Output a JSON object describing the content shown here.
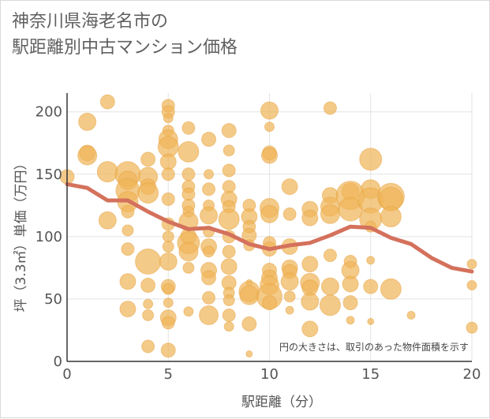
{
  "chart_data": {
    "type": "scatter",
    "title": "神奈川県海老名市の駅距離別中古マンション価格",
    "title_lines": [
      "神奈川県海老名市の",
      "駅距離別中古マンション価格"
    ],
    "xlabel": "駅距離（分）",
    "ylabel": "坪（3.3㎡）単価（万円）",
    "annotation": "円の大きさは、取引のあった物件面積を示す",
    "xlim": [
      0,
      20
    ],
    "ylim": [
      0,
      215
    ],
    "xticks": [
      0,
      5,
      10,
      15,
      20
    ],
    "yticks": [
      0,
      50,
      100,
      150,
      200
    ],
    "grid": true,
    "legend": "none",
    "colors": {
      "bubble": "#f0b55a",
      "bubble_stroke": "#e6a23e",
      "line": "#d4715c",
      "grid": "#e3e3e3",
      "axis": "#333333"
    },
    "scatter": [
      {
        "x": 0,
        "y": 148,
        "s": 9
      },
      {
        "x": 1,
        "y": 192,
        "s": 11
      },
      {
        "x": 1,
        "y": 167,
        "s": 10
      },
      {
        "x": 1,
        "y": 165,
        "s": 12
      },
      {
        "x": 2,
        "y": 208,
        "s": 9
      },
      {
        "x": 2,
        "y": 152,
        "s": 13
      },
      {
        "x": 2,
        "y": 113,
        "s": 11
      },
      {
        "x": 3,
        "y": 150,
        "s": 16
      },
      {
        "x": 3,
        "y": 145,
        "s": 12
      },
      {
        "x": 3,
        "y": 137,
        "s": 15
      },
      {
        "x": 3,
        "y": 128,
        "s": 13
      },
      {
        "x": 3,
        "y": 120,
        "s": 8
      },
      {
        "x": 3,
        "y": 105,
        "s": 7
      },
      {
        "x": 3,
        "y": 90,
        "s": 8
      },
      {
        "x": 3,
        "y": 64,
        "s": 10
      },
      {
        "x": 3,
        "y": 42,
        "s": 10
      },
      {
        "x": 4,
        "y": 162,
        "s": 9
      },
      {
        "x": 4,
        "y": 148,
        "s": 12
      },
      {
        "x": 4,
        "y": 140,
        "s": 10
      },
      {
        "x": 4,
        "y": 135,
        "s": 13
      },
      {
        "x": 4,
        "y": 80,
        "s": 16
      },
      {
        "x": 4,
        "y": 61,
        "s": 9
      },
      {
        "x": 4,
        "y": 46,
        "s": 6
      },
      {
        "x": 4,
        "y": 37,
        "s": 7
      },
      {
        "x": 4,
        "y": 12,
        "s": 8
      },
      {
        "x": 5,
        "y": 205,
        "s": 8
      },
      {
        "x": 5,
        "y": 200,
        "s": 8
      },
      {
        "x": 5,
        "y": 195,
        "s": 6
      },
      {
        "x": 5,
        "y": 185,
        "s": 7
      },
      {
        "x": 5,
        "y": 178,
        "s": 12
      },
      {
        "x": 5,
        "y": 172,
        "s": 13
      },
      {
        "x": 5,
        "y": 160,
        "s": 10
      },
      {
        "x": 5,
        "y": 150,
        "s": 8
      },
      {
        "x": 5,
        "y": 130,
        "s": 8
      },
      {
        "x": 5,
        "y": 110,
        "s": 8
      },
      {
        "x": 5,
        "y": 100,
        "s": 7
      },
      {
        "x": 5,
        "y": 92,
        "s": 7
      },
      {
        "x": 5,
        "y": 80,
        "s": 11
      },
      {
        "x": 5,
        "y": 60,
        "s": 9
      },
      {
        "x": 5,
        "y": 58,
        "s": 7
      },
      {
        "x": 5,
        "y": 47,
        "s": 6
      },
      {
        "x": 5,
        "y": 35,
        "s": 10
      },
      {
        "x": 5,
        "y": 31,
        "s": 8
      },
      {
        "x": 5,
        "y": 9,
        "s": 9
      },
      {
        "x": 6,
        "y": 187,
        "s": 8
      },
      {
        "x": 6,
        "y": 168,
        "s": 13
      },
      {
        "x": 6,
        "y": 150,
        "s": 8
      },
      {
        "x": 6,
        "y": 140,
        "s": 8
      },
      {
        "x": 6,
        "y": 134,
        "s": 8
      },
      {
        "x": 6,
        "y": 125,
        "s": 8
      },
      {
        "x": 6,
        "y": 120,
        "s": 7
      },
      {
        "x": 6,
        "y": 112,
        "s": 12
      },
      {
        "x": 6,
        "y": 100,
        "s": 10
      },
      {
        "x": 6,
        "y": 95,
        "s": 14
      },
      {
        "x": 6,
        "y": 88,
        "s": 12
      },
      {
        "x": 6,
        "y": 75,
        "s": 7
      },
      {
        "x": 6,
        "y": 40,
        "s": 6
      },
      {
        "x": 7,
        "y": 178,
        "s": 9
      },
      {
        "x": 7,
        "y": 150,
        "s": 6
      },
      {
        "x": 7,
        "y": 138,
        "s": 8
      },
      {
        "x": 7,
        "y": 125,
        "s": 7
      },
      {
        "x": 7,
        "y": 117,
        "s": 11
      },
      {
        "x": 7,
        "y": 104,
        "s": 7
      },
      {
        "x": 7,
        "y": 92,
        "s": 10
      },
      {
        "x": 7,
        "y": 88,
        "s": 7
      },
      {
        "x": 7,
        "y": 73,
        "s": 10
      },
      {
        "x": 7,
        "y": 67,
        "s": 9
      },
      {
        "x": 7,
        "y": 51,
        "s": 8
      },
      {
        "x": 7,
        "y": 37,
        "s": 12
      },
      {
        "x": 8,
        "y": 185,
        "s": 9
      },
      {
        "x": 8,
        "y": 169,
        "s": 7
      },
      {
        "x": 8,
        "y": 153,
        "s": 8
      },
      {
        "x": 8,
        "y": 140,
        "s": 8
      },
      {
        "x": 8,
        "y": 130,
        "s": 10
      },
      {
        "x": 8,
        "y": 124,
        "s": 8
      },
      {
        "x": 8,
        "y": 114,
        "s": 13
      },
      {
        "x": 8,
        "y": 100,
        "s": 8
      },
      {
        "x": 8,
        "y": 88,
        "s": 8
      },
      {
        "x": 8,
        "y": 76,
        "s": 10
      },
      {
        "x": 8,
        "y": 63,
        "s": 9
      },
      {
        "x": 8,
        "y": 55,
        "s": 7
      },
      {
        "x": 8,
        "y": 49,
        "s": 7
      },
      {
        "x": 8,
        "y": 37,
        "s": 8
      },
      {
        "x": 8,
        "y": 28,
        "s": 6
      },
      {
        "x": 9,
        "y": 125,
        "s": 8
      },
      {
        "x": 9,
        "y": 116,
        "s": 10
      },
      {
        "x": 9,
        "y": 108,
        "s": 8
      },
      {
        "x": 9,
        "y": 101,
        "s": 9
      },
      {
        "x": 9,
        "y": 93,
        "s": 7
      },
      {
        "x": 9,
        "y": 63,
        "s": 4
      },
      {
        "x": 9,
        "y": 56,
        "s": 13
      },
      {
        "x": 9,
        "y": 53,
        "s": 12
      },
      {
        "x": 9,
        "y": 30,
        "s": 9
      },
      {
        "x": 9,
        "y": 6,
        "s": 4
      },
      {
        "x": 10,
        "y": 201,
        "s": 11
      },
      {
        "x": 10,
        "y": 188,
        "s": 6
      },
      {
        "x": 10,
        "y": 167,
        "s": 9
      },
      {
        "x": 10,
        "y": 165,
        "s": 10
      },
      {
        "x": 10,
        "y": 123,
        "s": 12
      },
      {
        "x": 10,
        "y": 118,
        "s": 11
      },
      {
        "x": 10,
        "y": 95,
        "s": 8
      },
      {
        "x": 10,
        "y": 90,
        "s": 9
      },
      {
        "x": 10,
        "y": 73,
        "s": 9
      },
      {
        "x": 10,
        "y": 67,
        "s": 10
      },
      {
        "x": 10,
        "y": 61,
        "s": 12
      },
      {
        "x": 10,
        "y": 52,
        "s": 16
      },
      {
        "x": 10,
        "y": 47,
        "s": 9
      },
      {
        "x": 11,
        "y": 140,
        "s": 10
      },
      {
        "x": 11,
        "y": 118,
        "s": 8
      },
      {
        "x": 11,
        "y": 92,
        "s": 10
      },
      {
        "x": 11,
        "y": 75,
        "s": 10
      },
      {
        "x": 11,
        "y": 72,
        "s": 9
      },
      {
        "x": 11,
        "y": 64,
        "s": 11
      },
      {
        "x": 11,
        "y": 52,
        "s": 7
      },
      {
        "x": 11,
        "y": 41,
        "s": 5
      },
      {
        "x": 12,
        "y": 122,
        "s": 10
      },
      {
        "x": 12,
        "y": 115,
        "s": 10
      },
      {
        "x": 12,
        "y": 78,
        "s": 10
      },
      {
        "x": 12,
        "y": 63,
        "s": 12
      },
      {
        "x": 12,
        "y": 59,
        "s": 10
      },
      {
        "x": 12,
        "y": 48,
        "s": 11
      },
      {
        "x": 12,
        "y": 26,
        "s": 10
      },
      {
        "x": 13,
        "y": 133,
        "s": 10
      },
      {
        "x": 13,
        "y": 124,
        "s": 12
      },
      {
        "x": 13,
        "y": 118,
        "s": 12
      },
      {
        "x": 13,
        "y": 85,
        "s": 8
      },
      {
        "x": 13,
        "y": 60,
        "s": 11
      },
      {
        "x": 13,
        "y": 45,
        "s": 13
      },
      {
        "x": 13,
        "y": 203,
        "s": 8
      },
      {
        "x": 14,
        "y": 136,
        "s": 11
      },
      {
        "x": 14,
        "y": 133,
        "s": 18
      },
      {
        "x": 14,
        "y": 122,
        "s": 15
      },
      {
        "x": 14,
        "y": 80,
        "s": 8
      },
      {
        "x": 14,
        "y": 73,
        "s": 11
      },
      {
        "x": 14,
        "y": 62,
        "s": 10
      },
      {
        "x": 14,
        "y": 47,
        "s": 9
      },
      {
        "x": 14,
        "y": 33,
        "s": 5
      },
      {
        "x": 15,
        "y": 162,
        "s": 14
      },
      {
        "x": 15,
        "y": 138,
        "s": 12
      },
      {
        "x": 15,
        "y": 129,
        "s": 16
      },
      {
        "x": 15,
        "y": 114,
        "s": 14
      },
      {
        "x": 15,
        "y": 108,
        "s": 7
      },
      {
        "x": 15,
        "y": 81,
        "s": 5
      },
      {
        "x": 15,
        "y": 60,
        "s": 9
      },
      {
        "x": 15,
        "y": 32,
        "s": 4
      },
      {
        "x": 16,
        "y": 132,
        "s": 17
      },
      {
        "x": 16,
        "y": 130,
        "s": 15
      },
      {
        "x": 16,
        "y": 116,
        "s": 13
      },
      {
        "x": 16,
        "y": 58,
        "s": 13
      },
      {
        "x": 17,
        "y": 37,
        "s": 5
      },
      {
        "x": 20,
        "y": 78,
        "s": 6
      },
      {
        "x": 20,
        "y": 61,
        "s": 6
      },
      {
        "x": 20,
        "y": 27,
        "s": 7
      }
    ],
    "series": [
      {
        "type": "line",
        "x": [
          0,
          1,
          2,
          3,
          4,
          5,
          6,
          7,
          8,
          9,
          10,
          11,
          12,
          13,
          14,
          15,
          16,
          17,
          18,
          19,
          20
        ],
        "values": [
          142,
          139,
          129,
          129,
          120,
          112,
          106,
          107,
          102,
          94,
          90,
          93,
          95,
          101,
          108,
          107,
          99,
          94,
          83,
          75,
          72
        ]
      }
    ]
  }
}
